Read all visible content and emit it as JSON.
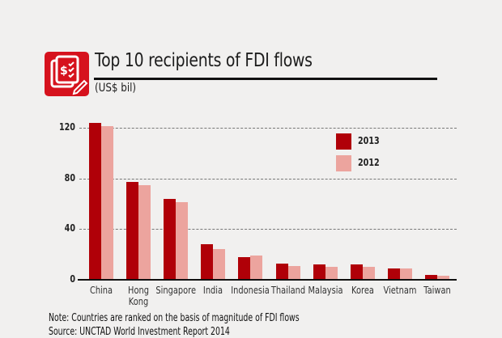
{
  "header": {
    "icon": "money-document-pencil-icon",
    "title": "Top 10 recipients of FDI flows",
    "unit": "(US$ bil)"
  },
  "legend": [
    {
      "label": "2013",
      "color": "#b00008"
    },
    {
      "label": "2012",
      "color": "#eca49e"
    }
  ],
  "y_ticks": [
    "0",
    "40",
    "80",
    "120"
  ],
  "x_labels": [
    "China",
    "Hong\nKong",
    "Singapore",
    "India",
    "Indonesia",
    "Thailand",
    "Malaysia",
    "Korea",
    "Vietnam",
    "Taiwan"
  ],
  "footer": {
    "note": "Note: Countries are ranked on the basis of magnitude of FDI flows",
    "source": "Source: UNCTAD World Investment Report 2014"
  },
  "colors": {
    "series_2013": "#b00008",
    "series_2012": "#eca49e",
    "icon_bg": "#d6121d",
    "background": "#f1f0ef"
  },
  "chart_data": {
    "type": "bar",
    "title": "Top 10 recipients of FDI flows",
    "subtitle": "(US$ bil)",
    "xlabel": "",
    "ylabel": "US$ bil",
    "categories": [
      "China",
      "Hong Kong",
      "Singapore",
      "India",
      "Indonesia",
      "Thailand",
      "Malaysia",
      "Korea",
      "Vietnam",
      "Taiwan"
    ],
    "series": [
      {
        "name": "2013",
        "values": [
          124,
          77,
          64,
          28,
          18,
          13,
          12,
          12,
          9,
          4
        ]
      },
      {
        "name": "2012",
        "values": [
          121,
          75,
          61,
          24,
          19,
          11,
          10,
          10,
          9,
          3
        ]
      }
    ],
    "ylim": [
      0,
      120
    ],
    "y_ticks": [
      0,
      40,
      80,
      120
    ],
    "grid": true,
    "legend_position": "upper right",
    "annotations": [
      "Note: Countries are ranked on the basis of magnitude of FDI flows",
      "Source: UNCTAD World Investment Report 2014"
    ]
  }
}
